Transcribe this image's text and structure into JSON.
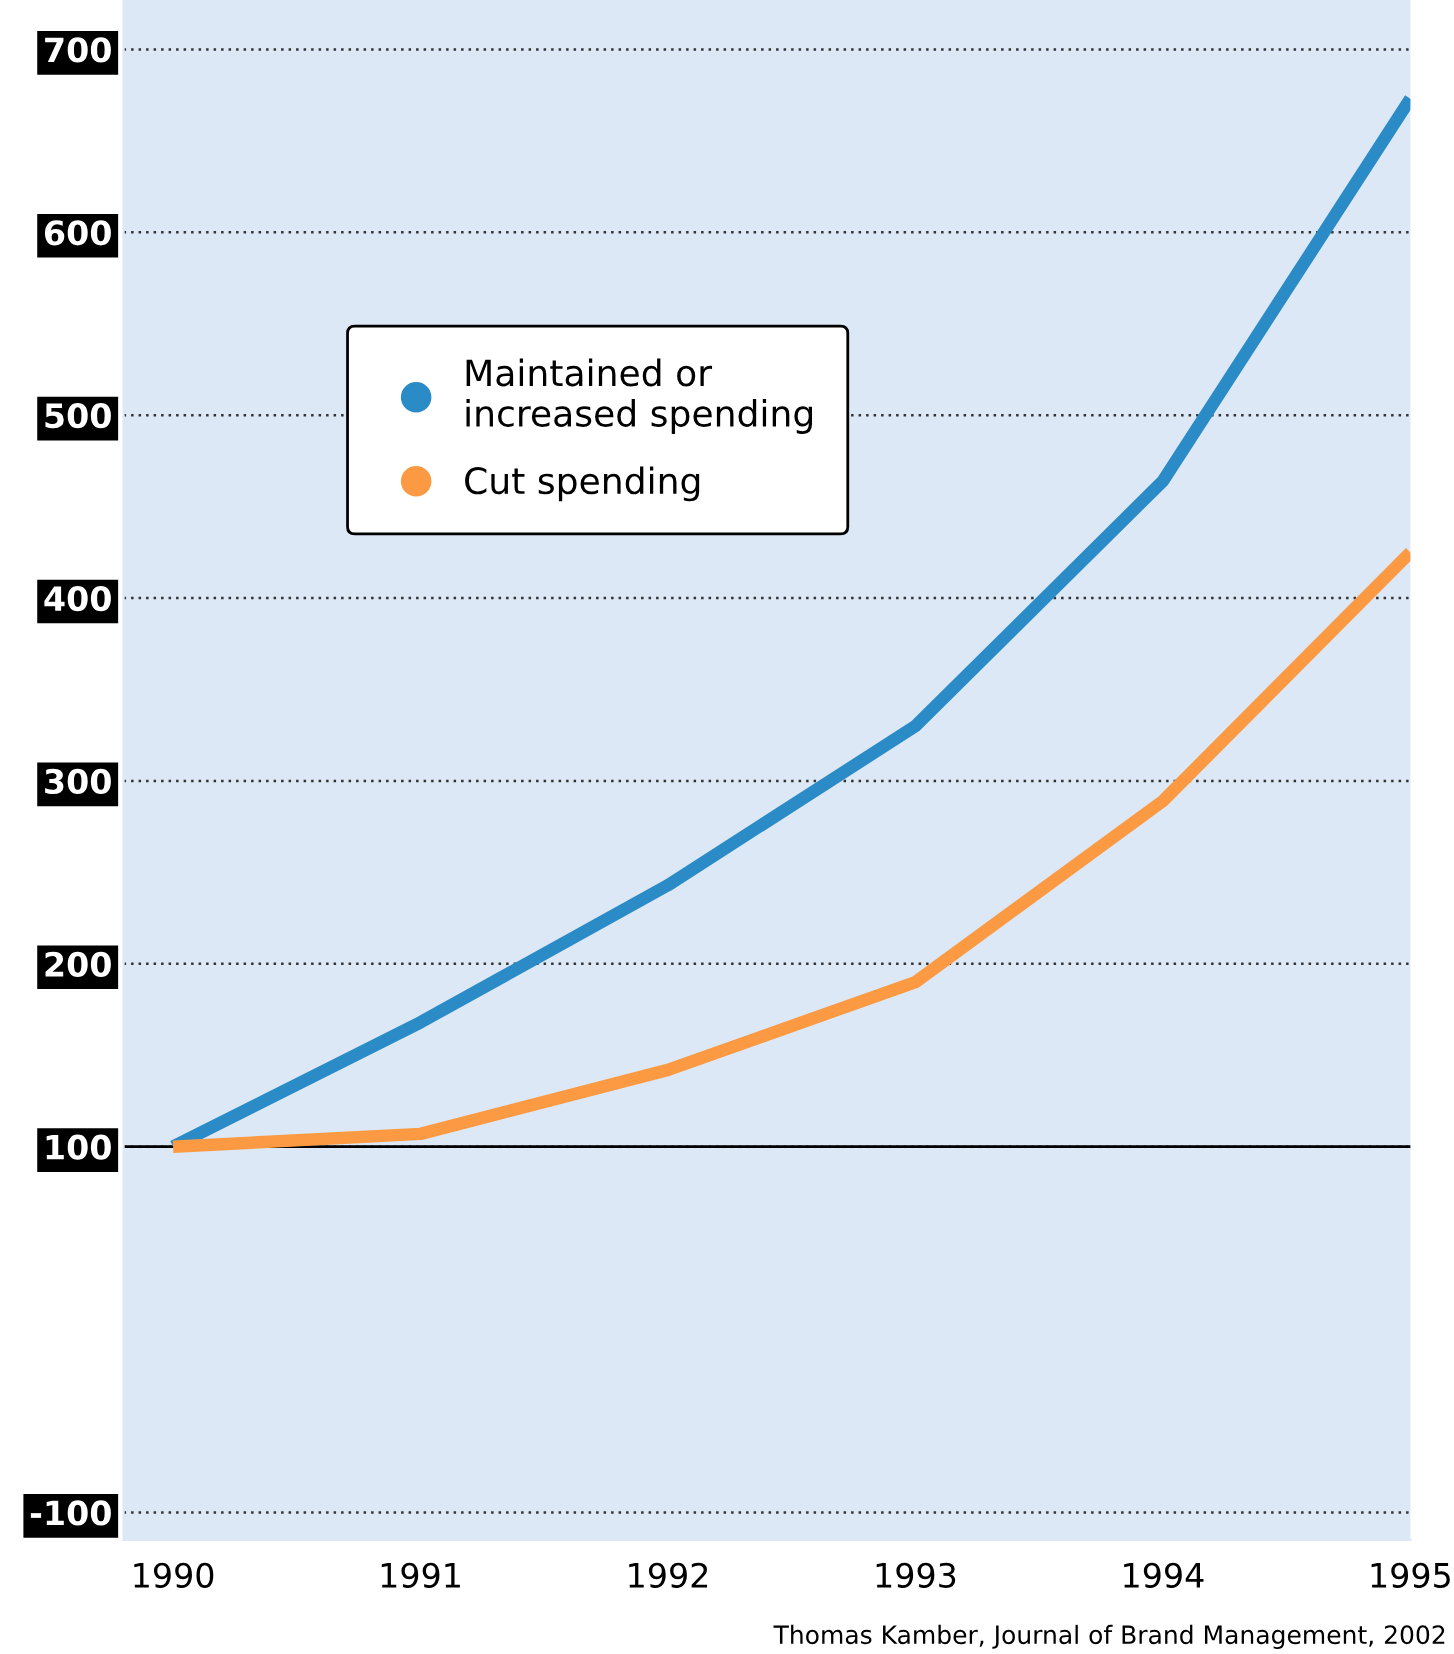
{
  "chart_data": {
    "type": "line",
    "x": [
      1990,
      1991,
      1992,
      1993,
      1994,
      1995
    ],
    "series": [
      {
        "name": "Maintained or\nincreased spending",
        "color": "#2a8bc6",
        "values": [
          100,
          168,
          243,
          330,
          464,
          673
        ]
      },
      {
        "name": "Cut spending",
        "color": "#fb9a42",
        "values": [
          100,
          107,
          142,
          190,
          289,
          425
        ]
      }
    ],
    "xlim": [
      1989.8,
      1995
    ],
    "xticks": [
      1990,
      1991,
      1992,
      1993,
      1994,
      1995
    ],
    "ylim": [
      -115,
      727
    ],
    "yticks": [
      -100,
      100,
      200,
      300,
      400,
      500,
      600,
      700
    ],
    "ref_lines": [
      {
        "axis": "y",
        "value": 100,
        "color": "#000000"
      }
    ],
    "grid": "y",
    "legend": "top left",
    "marker": "none",
    "line_style": "solid",
    "annotations": [
      "Thomas Kamber, Journal of Brand Management, 2002"
    ]
  }
}
